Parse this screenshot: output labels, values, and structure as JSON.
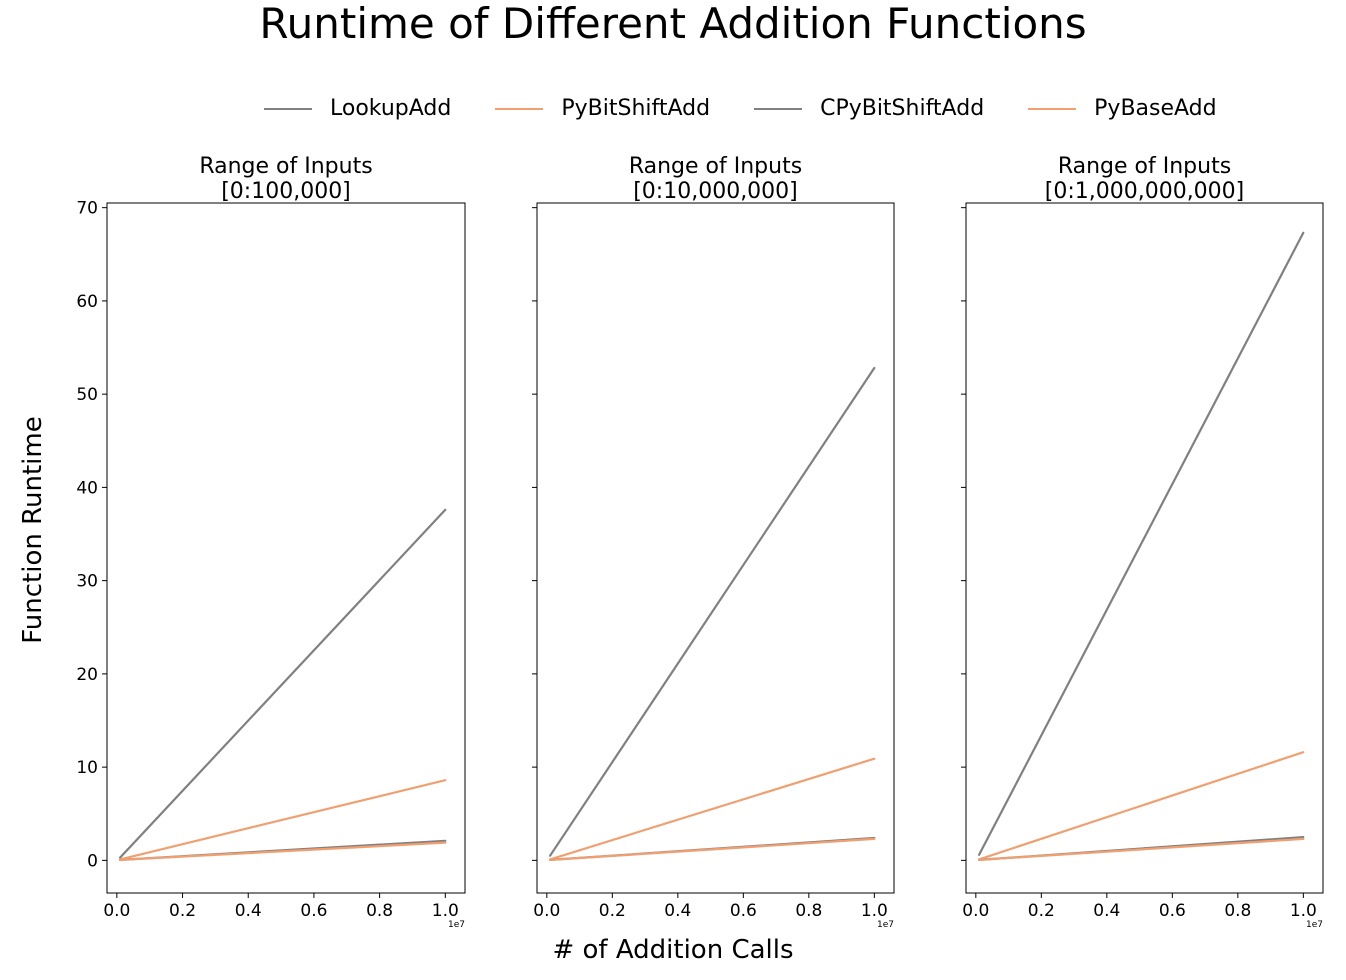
{
  "figure": {
    "title": "Runtime of Different Addition Functions",
    "xlabel": "# of Addition Calls",
    "ylabel": "Function Runtime",
    "offset_text": "1e7"
  },
  "legend": [
    {
      "name": "LookupAdd",
      "color": "#808080"
    },
    {
      "name": "PyBitShiftAdd",
      "color": "#f0a070"
    },
    {
      "name": "CPyBitShiftAdd",
      "color": "#808080"
    },
    {
      "name": "PyBaseAdd",
      "color": "#f0a070"
    }
  ],
  "chart_data": [
    {
      "type": "line",
      "title_lines": [
        "Range of Inputs",
        "[0:100,000]"
      ],
      "xlim": [
        -0.03,
        1.06
      ],
      "ylim": [
        -3.5,
        70.5
      ],
      "xticks": [
        "0.0",
        "0.2",
        "0.4",
        "0.6",
        "0.8",
        "1.0"
      ],
      "yticks": [
        "0",
        "10",
        "20",
        "30",
        "40",
        "50",
        "60",
        "70"
      ],
      "x": [
        0.01,
        1.0
      ],
      "series": [
        {
          "name": "LookupAdd",
          "color": "#808080",
          "values": [
            0.3,
            37.6
          ]
        },
        {
          "name": "PyBitShiftAdd",
          "color": "#f0a070",
          "values": [
            0.1,
            8.6
          ]
        },
        {
          "name": "CPyBitShiftAdd",
          "color": "#808080",
          "values": [
            0.05,
            2.1
          ]
        },
        {
          "name": "PyBaseAdd",
          "color": "#f0a070",
          "values": [
            0.05,
            1.9
          ]
        }
      ]
    },
    {
      "type": "line",
      "title_lines": [
        "Range of Inputs",
        "[0:10,000,000]"
      ],
      "xlim": [
        -0.03,
        1.06
      ],
      "ylim": [
        -3.5,
        70.5
      ],
      "xticks": [
        "0.0",
        "0.2",
        "0.4",
        "0.6",
        "0.8",
        "1.0"
      ],
      "yticks": [],
      "x": [
        0.01,
        1.0
      ],
      "series": [
        {
          "name": "LookupAdd",
          "color": "#808080",
          "values": [
            0.5,
            52.8
          ]
        },
        {
          "name": "PyBitShiftAdd",
          "color": "#f0a070",
          "values": [
            0.1,
            10.9
          ]
        },
        {
          "name": "CPyBitShiftAdd",
          "color": "#808080",
          "values": [
            0.05,
            2.4
          ]
        },
        {
          "name": "PyBaseAdd",
          "color": "#f0a070",
          "values": [
            0.05,
            2.3
          ]
        }
      ]
    },
    {
      "type": "line",
      "title_lines": [
        "Range of Inputs",
        "[0:1,000,000,000]"
      ],
      "xlim": [
        -0.03,
        1.06
      ],
      "ylim": [
        -3.5,
        70.5
      ],
      "xticks": [
        "0.0",
        "0.2",
        "0.4",
        "0.6",
        "0.8",
        "1.0"
      ],
      "yticks": [],
      "x": [
        0.01,
        1.0
      ],
      "series": [
        {
          "name": "LookupAdd",
          "color": "#808080",
          "values": [
            0.6,
            67.3
          ]
        },
        {
          "name": "PyBitShiftAdd",
          "color": "#f0a070",
          "values": [
            0.1,
            11.6
          ]
        },
        {
          "name": "CPyBitShiftAdd",
          "color": "#808080",
          "values": [
            0.05,
            2.5
          ]
        },
        {
          "name": "PyBaseAdd",
          "color": "#f0a070",
          "values": [
            0.05,
            2.3
          ]
        }
      ]
    }
  ]
}
